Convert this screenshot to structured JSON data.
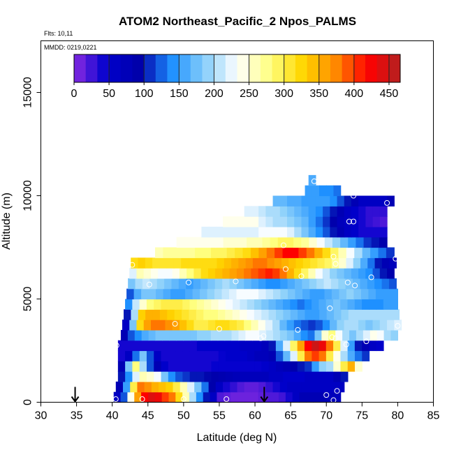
{
  "chart_data": {
    "type": "heatmap",
    "title": "ATOM2 Northeast_Pacific_2 Npos_PALMS",
    "subtitle_flights": "Flts: 10,11",
    "subtitle_dates": "MMDD: 0219,0221",
    "xlabel": "Latitude (deg N)",
    "ylabel": "Altitude (m)",
    "xlim": [
      30,
      85
    ],
    "ylim": [
      0,
      17500
    ],
    "x_ticks": [
      "30",
      "35",
      "40",
      "45",
      "50",
      "55",
      "60",
      "65",
      "70",
      "75",
      "80",
      "85"
    ],
    "y_ticks": [
      "0",
      "5000",
      "10000",
      "15000"
    ],
    "colorbar": {
      "range": [
        0,
        466
      ],
      "ticks": [
        "0",
        "50",
        "100",
        "150",
        "200",
        "250",
        "300",
        "350",
        "400",
        "450"
      ],
      "stops": [
        "#8a2be2",
        "#0000cd",
        "#0000aa",
        "#1e90ff",
        "#87cefa",
        "#ffffff",
        "#ffff80",
        "#ffd700",
        "#ff8c00",
        "#ff0000",
        "#b22222"
      ]
    },
    "rows": [
      {
        "alt_min": 0,
        "alt_max": 500,
        "lat_min": 40.2,
        "lat_max": 72,
        "values": [
          60,
          120,
          240,
          360,
          420,
          440,
          430,
          400,
          380,
          320,
          260,
          200,
          140,
          100,
          60,
          20,
          15,
          10,
          10,
          10,
          10,
          15,
          20,
          20,
          25,
          40,
          60,
          80,
          80,
          80,
          80,
          70,
          70
        ]
      },
      {
        "alt_min": 500,
        "alt_max": 1000,
        "lat_min": 40.5,
        "lat_max": 72.5,
        "values": [
          80,
          150,
          300,
          380,
          370,
          350,
          340,
          330,
          300,
          260,
          220,
          180,
          130,
          90,
          60,
          40,
          30,
          20,
          15,
          15,
          20,
          30,
          40,
          50,
          60,
          60,
          60,
          60,
          60,
          60,
          60,
          60
        ]
      },
      {
        "alt_min": 1000,
        "alt_max": 1500,
        "lat_min": 40.8,
        "lat_max": 73,
        "values": [
          100,
          140,
          220,
          260,
          250,
          230,
          180,
          140,
          120,
          110,
          100,
          100,
          95,
          90,
          85,
          80,
          75,
          70,
          70,
          70,
          70,
          60,
          60,
          50,
          50,
          50,
          60,
          60,
          60,
          60,
          80,
          100
        ]
      },
      {
        "alt_min": 1500,
        "alt_max": 2000,
        "lat_min": 40.8,
        "lat_max": 75,
        "values": [
          80,
          180,
          280,
          200,
          120,
          80,
          50,
          40,
          40,
          40,
          40,
          40,
          40,
          45,
          45,
          45,
          45,
          45,
          45,
          45,
          50,
          60,
          70,
          80,
          90,
          100,
          110,
          150,
          190,
          200,
          250,
          300,
          350,
          250
        ]
      },
      {
        "alt_min": 2000,
        "alt_max": 2500,
        "lat_min": 40.8,
        "lat_max": 76,
        "values": [
          40,
          60,
          130,
          180,
          120,
          60,
          40,
          40,
          40,
          40,
          40,
          40,
          40,
          40,
          45,
          50,
          50,
          50,
          60,
          70,
          70,
          80,
          120,
          170,
          220,
          300,
          380,
          400,
          380,
          300,
          240,
          200,
          160,
          130,
          110
        ]
      },
      {
        "alt_min": 2500,
        "alt_max": 3000,
        "lat_min": 40.8,
        "lat_max": 78,
        "values": [
          40,
          40,
          40,
          40,
          40,
          40,
          40,
          40,
          40,
          40,
          40,
          50,
          50,
          50,
          50,
          50,
          50,
          60,
          60,
          60,
          70,
          100,
          160,
          220,
          290,
          360,
          420,
          450,
          430,
          380,
          300,
          220,
          150,
          100,
          80,
          60,
          50
        ]
      },
      {
        "alt_min": 3000,
        "alt_max": 3500,
        "lat_min": 41.2,
        "lat_max": 80,
        "values": [
          80,
          120,
          140,
          160,
          170,
          180,
          180,
          180,
          180,
          180,
          180,
          190,
          190,
          200,
          200,
          200,
          210,
          220,
          230,
          230,
          220,
          210,
          200,
          190,
          180,
          160,
          140,
          130,
          180,
          250,
          280,
          230,
          200,
          180,
          200,
          220,
          240,
          230,
          200,
          190
        ]
      },
      {
        "alt_min": 3500,
        "alt_max": 4000,
        "lat_min": 41.4,
        "lat_max": 80.5,
        "values": [
          60,
          180,
          320,
          360,
          380,
          380,
          370,
          360,
          340,
          320,
          300,
          300,
          310,
          320,
          320,
          310,
          300,
          280,
          260,
          240,
          220,
          200,
          170,
          150,
          130,
          120,
          110,
          120,
          140,
          170,
          190,
          200,
          200,
          190,
          180,
          190,
          200,
          210,
          220
        ]
      },
      {
        "alt_min": 4000,
        "alt_max": 4500,
        "lat_min": 41.6,
        "lat_max": 80.2,
        "values": [
          100,
          200,
          330,
          350,
          350,
          340,
          330,
          320,
          310,
          300,
          290,
          280,
          280,
          270,
          260,
          250,
          240,
          230,
          220,
          210,
          200,
          190,
          180,
          170,
          160,
          150,
          150,
          160,
          170,
          180,
          190,
          200,
          200,
          200,
          200,
          200,
          200,
          200
        ]
      },
      {
        "alt_min": 4500,
        "alt_max": 5000,
        "lat_min": 41.8,
        "lat_max": 80,
        "values": [
          140,
          210,
          250,
          280,
          290,
          300,
          300,
          300,
          290,
          280,
          270,
          260,
          250,
          240,
          230,
          220,
          210,
          200,
          190,
          180,
          170,
          160,
          150,
          140,
          130,
          140,
          150,
          160,
          170,
          180,
          170,
          160,
          150,
          140,
          140,
          140,
          150,
          150
        ]
      },
      {
        "alt_min": 5000,
        "alt_max": 5500,
        "lat_min": 42,
        "lat_max": 80,
        "values": [
          120,
          160,
          180,
          180,
          170,
          160,
          150,
          150,
          160,
          170,
          180,
          190,
          200,
          210,
          220,
          230,
          230,
          230,
          220,
          210,
          200,
          190,
          180,
          170,
          160,
          150,
          150,
          160,
          170,
          180,
          190,
          180,
          170,
          160,
          150,
          150,
          150
        ]
      },
      {
        "alt_min": 5500,
        "alt_max": 6000,
        "lat_min": 42.2,
        "lat_max": 79.8,
        "values": [
          180,
          200,
          210,
          200,
          190,
          180,
          170,
          160,
          150,
          160,
          170,
          180,
          190,
          200,
          190,
          180,
          170,
          160,
          150,
          140,
          140,
          150,
          160,
          170,
          180,
          190,
          200,
          210,
          200,
          190,
          180,
          170,
          160,
          150,
          140,
          130,
          120
        ]
      },
      {
        "alt_min": 6000,
        "alt_max": 6500,
        "lat_min": 42.4,
        "lat_max": 79.5,
        "values": [
          220,
          260,
          250,
          240,
          230,
          230,
          240,
          260,
          280,
          300,
          320,
          330,
          340,
          350,
          360,
          370,
          380,
          390,
          400,
          410,
          400,
          380,
          350,
          320,
          290,
          260,
          230,
          210,
          190,
          180,
          170,
          160,
          150,
          140,
          120,
          100,
          90
        ]
      },
      {
        "alt_min": 6500,
        "alt_max": 7000,
        "lat_min": 42.6,
        "lat_max": 79.8,
        "values": [
          320,
          330,
          320,
          310,
          310,
          310,
          310,
          320,
          320,
          320,
          320,
          320,
          330,
          340,
          350,
          360,
          370,
          380,
          380,
          370,
          360,
          350,
          340,
          330,
          320,
          310,
          300,
          290,
          270,
          250,
          220,
          190,
          160,
          130,
          100,
          80,
          70
        ]
      },
      {
        "alt_min": 7000,
        "alt_max": 7500,
        "lat_min": 46,
        "lat_max": 79.5,
        "values": [
          260,
          270,
          270,
          270,
          270,
          280,
          280,
          290,
          290,
          300,
          310,
          320,
          340,
          360,
          380,
          400,
          420,
          420,
          400,
          380,
          350,
          320,
          290,
          260,
          230,
          200,
          170,
          150,
          130,
          110
        ]
      },
      {
        "alt_min": 7500,
        "alt_max": 8000,
        "lat_min": 49,
        "lat_max": 78.5,
        "values": [
          240,
          240,
          240,
          240,
          240,
          240,
          250,
          250,
          250,
          260,
          260,
          270,
          280,
          290,
          290,
          280,
          270,
          250,
          230,
          210,
          190,
          170,
          150,
          130,
          110,
          100,
          90
        ]
      },
      {
        "alt_min": 8000,
        "alt_max": 8500,
        "lat_min": 52.5,
        "lat_max": 78.5,
        "values": [
          220,
          220,
          220,
          220,
          220,
          220,
          220,
          220,
          230,
          230,
          230,
          230,
          220,
          200,
          180,
          160,
          140,
          120,
          100,
          80,
          60,
          50,
          40,
          40,
          40,
          40
        ]
      },
      {
        "alt_min": 8500,
        "alt_max": 9000,
        "lat_min": 55.5,
        "lat_max": 78.5,
        "values": [
          240,
          240,
          240,
          240,
          240,
          220,
          210,
          200,
          200,
          190,
          180,
          170,
          150,
          130,
          110,
          90,
          70,
          60,
          50,
          40,
          30,
          25,
          20
        ]
      },
      {
        "alt_min": 9000,
        "alt_max": 9500,
        "lat_min": 58.5,
        "lat_max": 78.5,
        "values": [
          220,
          220,
          210,
          200,
          200,
          190,
          180,
          170,
          160,
          150,
          140,
          120,
          100,
          80,
          60,
          50,
          40,
          30,
          30,
          30
        ]
      },
      {
        "alt_min": 9500,
        "alt_max": 10000,
        "lat_min": 62.5,
        "lat_max": 79.5,
        "values": [
          170,
          170,
          160,
          160,
          150,
          150,
          150,
          150,
          140,
          120,
          100,
          80,
          60,
          60,
          60,
          60,
          80
        ]
      },
      {
        "alt_min": 10000,
        "alt_max": 10500,
        "lat_min": 67,
        "lat_max": 72,
        "values": [
          150,
          150,
          140,
          140,
          130
        ]
      },
      {
        "alt_min": 10500,
        "alt_max": 11000,
        "lat_min": 67.5,
        "lat_max": 68.5,
        "values": [
          160
        ]
      }
    ],
    "markers": [
      {
        "lat": 34.8,
        "alt": 0
      },
      {
        "lat": 61.3,
        "alt": 0
      }
    ],
    "points": [
      {
        "lat": 40.5,
        "alt": 150
      },
      {
        "lat": 44.2,
        "alt": 150
      },
      {
        "lat": 50,
        "alt": 150
      },
      {
        "lat": 56,
        "alt": 150
      },
      {
        "lat": 70,
        "alt": 350
      },
      {
        "lat": 71.5,
        "alt": 550
      },
      {
        "lat": 71,
        "alt": 100
      },
      {
        "lat": 40.6,
        "alt": 2750
      },
      {
        "lat": 61.2,
        "alt": 3200
      },
      {
        "lat": 60.8,
        "alt": 3100
      },
      {
        "lat": 70.8,
        "alt": 3150
      },
      {
        "lat": 71.3,
        "alt": 3100
      },
      {
        "lat": 72.8,
        "alt": 2800
      },
      {
        "lat": 75.6,
        "alt": 2950
      },
      {
        "lat": 48.8,
        "alt": 3800
      },
      {
        "lat": 55,
        "alt": 3550
      },
      {
        "lat": 66,
        "alt": 3500
      },
      {
        "lat": 70.5,
        "alt": 4550
      },
      {
        "lat": 80,
        "alt": 3700
      },
      {
        "lat": 45.2,
        "alt": 5700
      },
      {
        "lat": 50.7,
        "alt": 5800
      },
      {
        "lat": 57.3,
        "alt": 5850
      },
      {
        "lat": 66.5,
        "alt": 6100
      },
      {
        "lat": 73,
        "alt": 5800
      },
      {
        "lat": 74,
        "alt": 5650
      },
      {
        "lat": 76.3,
        "alt": 6050
      },
      {
        "lat": 42.8,
        "alt": 6650
      },
      {
        "lat": 64.3,
        "alt": 6450
      },
      {
        "lat": 71,
        "alt": 7050
      },
      {
        "lat": 71.3,
        "alt": 6700
      },
      {
        "lat": 64,
        "alt": 7600
      },
      {
        "lat": 79.7,
        "alt": 6950
      },
      {
        "lat": 73.2,
        "alt": 8750
      },
      {
        "lat": 73.8,
        "alt": 8750
      },
      {
        "lat": 73.8,
        "alt": 10000
      },
      {
        "lat": 78.5,
        "alt": 9650
      },
      {
        "lat": 68.3,
        "alt": 10700
      }
    ]
  }
}
